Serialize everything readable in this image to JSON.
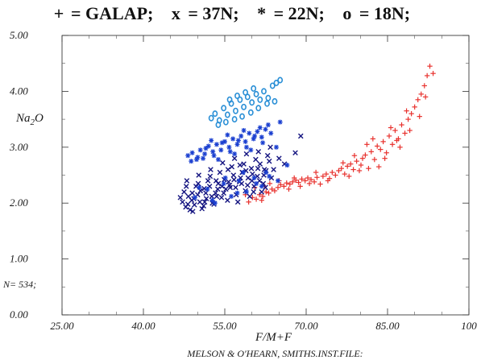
{
  "chart_data": {
    "type": "scatter",
    "title": "",
    "xlabel": "F/M+F",
    "ylabel": "Na2O",
    "xlim": [
      25,
      100
    ],
    "ylim": [
      0,
      5
    ],
    "x_ticks": [
      {
        "value": 25,
        "label": "25.00"
      },
      {
        "value": 40,
        "label": "40.00"
      },
      {
        "value": 55,
        "label": "55.00"
      },
      {
        "value": 70,
        "label": "70.00"
      },
      {
        "value": 85,
        "label": "85.00"
      },
      {
        "value": 100,
        "label": "100"
      }
    ],
    "y_ticks": [
      {
        "value": 0,
        "label": "0.00"
      },
      {
        "value": 1,
        "label": "1.00"
      },
      {
        "value": 2,
        "label": "2.00"
      },
      {
        "value": 3,
        "label": "3.00"
      },
      {
        "value": 4,
        "label": "4.00"
      },
      {
        "value": 5,
        "label": "5.00"
      }
    ],
    "legend": {
      "placement": "top",
      "entries": [
        {
          "symbol": "+",
          "text": "= GALAP;",
          "color": "#e8322e"
        },
        {
          "symbol": "x",
          "text": "= 37N;",
          "color": "#141480"
        },
        {
          "symbol": "*",
          "text": "= 22N;",
          "color": "#1a3fd0"
        },
        {
          "symbol": "o",
          "text": "= 18N;",
          "color": "#2a8fd6"
        }
      ]
    },
    "annotation": "N= 534;",
    "credit": "MELSON & O'HEARN, SMITHS.INST.FILE:",
    "series": [
      {
        "name": "GALAP",
        "marker": "plus",
        "color": "#e8322e",
        "points": [
          [
            59.4,
            2.02
          ],
          [
            60.1,
            2.1
          ],
          [
            60.8,
            2.07
          ],
          [
            61.4,
            2.15
          ],
          [
            62.0,
            2.12
          ],
          [
            62.6,
            2.2
          ],
          [
            63.1,
            2.18
          ],
          [
            63.7,
            2.25
          ],
          [
            64.2,
            2.22
          ],
          [
            64.8,
            2.28
          ],
          [
            65.3,
            2.33
          ],
          [
            65.9,
            2.3
          ],
          [
            66.4,
            2.36
          ],
          [
            67.0,
            2.34
          ],
          [
            67.5,
            2.38
          ],
          [
            68.1,
            2.41
          ],
          [
            68.6,
            2.37
          ],
          [
            69.2,
            2.43
          ],
          [
            69.8,
            2.4
          ],
          [
            70.3,
            2.45
          ],
          [
            70.9,
            2.42
          ],
          [
            71.5,
            2.38
          ],
          [
            72.0,
            2.46
          ],
          [
            72.6,
            2.34
          ],
          [
            73.1,
            2.48
          ],
          [
            73.7,
            2.52
          ],
          [
            74.3,
            2.44
          ],
          [
            74.8,
            2.55
          ],
          [
            75.4,
            2.5
          ],
          [
            76.0,
            2.58
          ],
          [
            76.5,
            2.62
          ],
          [
            77.1,
            2.52
          ],
          [
            77.6,
            2.66
          ],
          [
            78.2,
            2.7
          ],
          [
            78.7,
            2.6
          ],
          [
            79.3,
            2.75
          ],
          [
            79.8,
            2.58
          ],
          [
            80.4,
            2.8
          ],
          [
            80.9,
            2.86
          ],
          [
            81.5,
            2.62
          ],
          [
            82.0,
            2.92
          ],
          [
            82.6,
            2.78
          ],
          [
            83.1,
            3.02
          ],
          [
            83.7,
            2.96
          ],
          [
            84.2,
            3.1
          ],
          [
            84.8,
            2.9
          ],
          [
            85.3,
            3.2
          ],
          [
            85.9,
            3.05
          ],
          [
            86.4,
            3.3
          ],
          [
            87.0,
            3.15
          ],
          [
            87.6,
            3.4
          ],
          [
            88.2,
            3.25
          ],
          [
            88.8,
            3.5
          ],
          [
            89.4,
            3.6
          ],
          [
            90.0,
            3.72
          ],
          [
            90.6,
            3.85
          ],
          [
            91.2,
            3.95
          ],
          [
            91.8,
            4.1
          ],
          [
            92.3,
            4.28
          ],
          [
            92.8,
            4.45
          ],
          [
            93.4,
            4.32
          ],
          [
            60.5,
            2.28
          ],
          [
            61.8,
            2.05
          ],
          [
            63.3,
            2.35
          ],
          [
            66.8,
            2.25
          ],
          [
            68.9,
            2.3
          ],
          [
            71.8,
            2.55
          ],
          [
            74.0,
            2.4
          ],
          [
            76.8,
            2.72
          ],
          [
            78.9,
            2.85
          ],
          [
            81.2,
            3.05
          ],
          [
            83.4,
            2.65
          ],
          [
            85.6,
            3.35
          ],
          [
            87.3,
            3.0
          ],
          [
            89.1,
            3.3
          ],
          [
            90.9,
            3.55
          ],
          [
            92.0,
            3.9
          ],
          [
            77.9,
            2.48
          ],
          [
            80.1,
            2.68
          ],
          [
            82.3,
            3.15
          ],
          [
            84.5,
            2.8
          ],
          [
            86.7,
            3.12
          ],
          [
            88.5,
            3.65
          ],
          [
            58.8,
            2.15
          ],
          [
            62.3,
            2.3
          ],
          [
            65.0,
            2.4
          ],
          [
            67.8,
            2.45
          ],
          [
            70.6,
            2.35
          ]
        ]
      },
      {
        "name": "37N",
        "marker": "x",
        "color": "#141480",
        "points": [
          [
            47.2,
            2.02
          ],
          [
            47.8,
            1.93
          ],
          [
            48.3,
            2.12
          ],
          [
            48.9,
            2.05
          ],
          [
            49.4,
            1.97
          ],
          [
            50.0,
            2.15
          ],
          [
            50.5,
            2.22
          ],
          [
            51.1,
            1.95
          ],
          [
            51.6,
            2.08
          ],
          [
            52.2,
            2.3
          ],
          [
            52.7,
            2.0
          ],
          [
            53.3,
            2.18
          ],
          [
            53.8,
            2.35
          ],
          [
            54.4,
            2.1
          ],
          [
            54.9,
            2.42
          ],
          [
            55.5,
            2.05
          ],
          [
            56.0,
            2.28
          ],
          [
            56.6,
            2.5
          ],
          [
            57.1,
            2.15
          ],
          [
            57.7,
            2.38
          ],
          [
            58.2,
            2.55
          ],
          [
            58.8,
            2.22
          ],
          [
            59.3,
            2.45
          ],
          [
            59.9,
            2.62
          ],
          [
            60.4,
            2.3
          ],
          [
            61.0,
            2.48
          ],
          [
            61.5,
            2.7
          ],
          [
            62.1,
            2.35
          ],
          [
            62.6,
            2.58
          ],
          [
            63.2,
            2.75
          ],
          [
            47.5,
            2.2
          ],
          [
            48.6,
            1.88
          ],
          [
            49.7,
            2.3
          ],
          [
            50.8,
            1.9
          ],
          [
            51.9,
            2.4
          ],
          [
            53.0,
            1.98
          ],
          [
            54.1,
            2.55
          ],
          [
            55.2,
            2.25
          ],
          [
            56.3,
            2.65
          ],
          [
            57.4,
            2.02
          ],
          [
            58.5,
            2.7
          ],
          [
            59.6,
            2.12
          ],
          [
            60.7,
            2.78
          ],
          [
            61.8,
            2.2
          ],
          [
            62.9,
            2.85
          ],
          [
            48.0,
            2.4
          ],
          [
            49.1,
            1.85
          ],
          [
            50.2,
            2.5
          ],
          [
            51.3,
            2.02
          ],
          [
            52.4,
            2.6
          ],
          [
            53.5,
            2.12
          ],
          [
            54.6,
            2.72
          ],
          [
            55.7,
            2.38
          ],
          [
            56.8,
            2.8
          ],
          [
            57.9,
            2.45
          ],
          [
            59.0,
            2.88
          ],
          [
            60.1,
            2.52
          ],
          [
            61.2,
            2.92
          ],
          [
            62.3,
            2.6
          ],
          [
            63.4,
            3.0
          ],
          [
            46.8,
            2.1
          ],
          [
            47.9,
            2.3
          ],
          [
            49.0,
            2.18
          ],
          [
            50.1,
            2.35
          ],
          [
            51.2,
            2.26
          ],
          [
            52.3,
            2.48
          ],
          [
            53.4,
            2.4
          ],
          [
            54.5,
            2.3
          ],
          [
            55.6,
            2.6
          ],
          [
            56.7,
            2.42
          ],
          [
            57.8,
            2.68
          ],
          [
            58.9,
            2.58
          ],
          [
            60.0,
            2.4
          ],
          [
            61.1,
            2.62
          ],
          [
            62.2,
            2.5
          ],
          [
            64.0,
            2.6
          ],
          [
            65.0,
            2.8
          ],
          [
            66.0,
            2.7
          ],
          [
            68.0,
            2.9
          ],
          [
            69.0,
            3.2
          ],
          [
            48.2,
            1.98
          ],
          [
            49.3,
            2.08
          ],
          [
            50.4,
            2.02
          ],
          [
            51.5,
            2.18
          ],
          [
            52.6,
            2.12
          ],
          [
            53.7,
            2.25
          ],
          [
            54.8,
            2.18
          ],
          [
            55.9,
            2.32
          ],
          [
            57.0,
            2.28
          ],
          [
            58.1,
            2.35
          ],
          [
            59.2,
            2.32
          ],
          [
            60.3,
            2.2
          ],
          [
            61.4,
            2.4
          ],
          [
            62.5,
            2.28
          ],
          [
            63.6,
            2.45
          ]
        ]
      },
      {
        "name": "22N",
        "marker": "star",
        "color": "#1a3fd0",
        "points": [
          [
            48.2,
            2.85
          ],
          [
            49.0,
            2.9
          ],
          [
            49.8,
            2.78
          ],
          [
            50.5,
            2.95
          ],
          [
            51.3,
            2.88
          ],
          [
            52.0,
            3.02
          ],
          [
            52.8,
            2.92
          ],
          [
            53.5,
            3.05
          ],
          [
            54.3,
            2.95
          ],
          [
            55.0,
            3.1
          ],
          [
            55.8,
            3.0
          ],
          [
            56.5,
            3.15
          ],
          [
            57.3,
            3.05
          ],
          [
            58.0,
            3.2
          ],
          [
            58.8,
            3.1
          ],
          [
            59.5,
            3.25
          ],
          [
            60.3,
            3.15
          ],
          [
            61.0,
            3.28
          ],
          [
            61.8,
            3.18
          ],
          [
            62.5,
            3.32
          ],
          [
            50.0,
            2.82
          ],
          [
            51.5,
            2.98
          ],
          [
            53.0,
            2.85
          ],
          [
            54.5,
            3.08
          ],
          [
            56.0,
            2.92
          ],
          [
            57.5,
            3.12
          ],
          [
            59.0,
            3.0
          ],
          [
            60.5,
            3.2
          ],
          [
            62.0,
            3.08
          ],
          [
            63.5,
            3.25
          ],
          [
            52.5,
            3.12
          ],
          [
            55.5,
            3.22
          ],
          [
            58.5,
            3.3
          ],
          [
            61.5,
            3.35
          ],
          [
            64.5,
            3.0
          ],
          [
            48.8,
            2.75
          ],
          [
            51.0,
            2.8
          ],
          [
            53.8,
            2.78
          ],
          [
            56.8,
            2.88
          ],
          [
            59.8,
            2.95
          ],
          [
            49.5,
            2.1
          ],
          [
            51.8,
            2.25
          ],
          [
            53.2,
            2.0
          ],
          [
            54.8,
            2.35
          ],
          [
            56.2,
            2.12
          ],
          [
            57.6,
            2.4
          ],
          [
            59.0,
            2.2
          ],
          [
            60.4,
            2.45
          ],
          [
            61.8,
            2.3
          ],
          [
            63.2,
            2.48
          ],
          [
            50.3,
            2.28
          ],
          [
            52.7,
            2.05
          ],
          [
            55.1,
            2.45
          ],
          [
            57.3,
            2.18
          ],
          [
            58.4,
            2.55
          ],
          [
            60.8,
            2.35
          ],
          [
            62.6,
            2.55
          ],
          [
            64.8,
            2.4
          ],
          [
            66.5,
            2.68
          ],
          [
            65.2,
            3.45
          ],
          [
            63.0,
            3.4
          ]
        ]
      },
      {
        "name": "18N",
        "marker": "circle",
        "color": "#2a8fd6",
        "points": [
          [
            52.5,
            3.52
          ],
          [
            53.2,
            3.6
          ],
          [
            54.0,
            3.48
          ],
          [
            54.8,
            3.7
          ],
          [
            55.5,
            3.58
          ],
          [
            56.2,
            3.78
          ],
          [
            57.0,
            3.65
          ],
          [
            57.8,
            3.85
          ],
          [
            58.5,
            3.72
          ],
          [
            59.2,
            3.9
          ],
          [
            60.0,
            3.8
          ],
          [
            60.8,
            3.95
          ],
          [
            61.5,
            3.85
          ],
          [
            62.2,
            4.0
          ],
          [
            63.0,
            3.88
          ],
          [
            63.8,
            4.1
          ],
          [
            64.5,
            4.15
          ],
          [
            65.2,
            4.2
          ],
          [
            53.8,
            3.4
          ],
          [
            55.2,
            3.45
          ],
          [
            56.8,
            3.5
          ],
          [
            58.2,
            3.55
          ],
          [
            59.8,
            3.62
          ],
          [
            61.2,
            3.7
          ],
          [
            62.8,
            3.78
          ],
          [
            64.2,
            3.82
          ],
          [
            60.3,
            4.05
          ],
          [
            58.8,
            3.98
          ],
          [
            57.3,
            3.92
          ],
          [
            55.9,
            3.85
          ]
        ]
      }
    ]
  }
}
